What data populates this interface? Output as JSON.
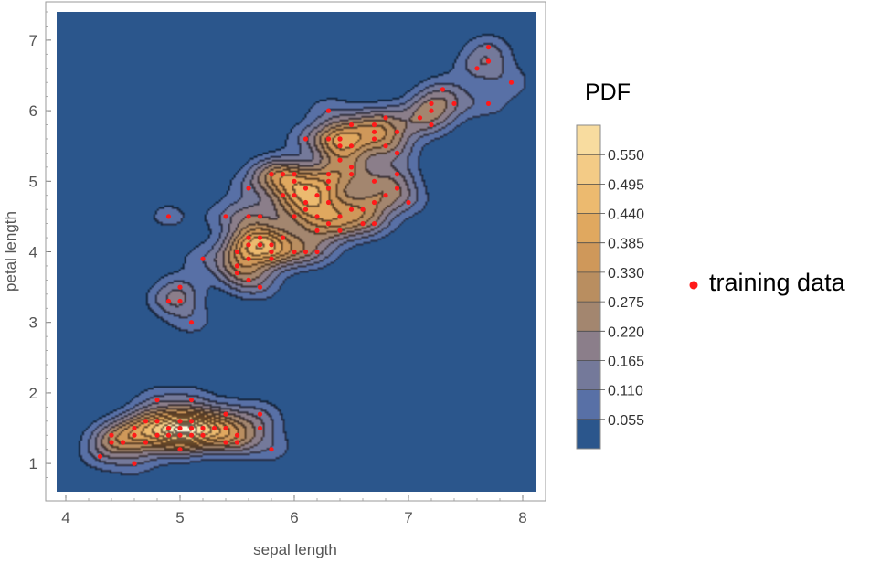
{
  "chart_data": {
    "type": "contour",
    "xlabel": "sepal length",
    "ylabel": "petal length",
    "xlim": [
      3.92,
      8.12
    ],
    "ylim": [
      0.6,
      7.4
    ],
    "x_ticks": [
      4,
      5,
      6,
      7,
      8
    ],
    "y_ticks": [
      1,
      2,
      3,
      4,
      5,
      6,
      7
    ],
    "grid": false,
    "colorbar": {
      "title": "PDF",
      "ticks": [
        "0.055",
        "0.110",
        "0.165",
        "0.220",
        "0.275",
        "0.330",
        "0.385",
        "0.440",
        "0.495",
        "0.550"
      ],
      "colors": [
        "#2b568c",
        "#5870a6",
        "#74799a",
        "#8b7e8a",
        "#a3866f",
        "#b98e60",
        "#cf985a",
        "#e0a85f",
        "#ecba6f",
        "#f3cb86",
        "#f8dc9f",
        "#fcecbe",
        "#fff8dc"
      ]
    },
    "legend": {
      "label": "training data",
      "color": "#ff1a1a",
      "placement": "right"
    },
    "density_levels": [
      0.055,
      0.11,
      0.165,
      0.22,
      0.275,
      0.33,
      0.385,
      0.44,
      0.495,
      0.55
    ],
    "points": [
      [
        4.3,
        1.1
      ],
      [
        4.4,
        1.4
      ],
      [
        4.4,
        1.3
      ],
      [
        4.5,
        1.3
      ],
      [
        4.6,
        1.0
      ],
      [
        4.6,
        1.4
      ],
      [
        4.6,
        1.5
      ],
      [
        4.7,
        1.3
      ],
      [
        4.7,
        1.6
      ],
      [
        4.8,
        1.9
      ],
      [
        4.8,
        1.6
      ],
      [
        4.8,
        1.4
      ],
      [
        4.9,
        1.5
      ],
      [
        4.9,
        1.4
      ],
      [
        5.0,
        1.6
      ],
      [
        5.0,
        1.5
      ],
      [
        5.0,
        1.4
      ],
      [
        5.0,
        1.2
      ],
      [
        5.1,
        1.5
      ],
      [
        5.1,
        1.4
      ],
      [
        5.1,
        1.6
      ],
      [
        5.1,
        1.9
      ],
      [
        5.2,
        1.5
      ],
      [
        5.2,
        1.4
      ],
      [
        5.3,
        1.5
      ],
      [
        5.4,
        1.7
      ],
      [
        5.4,
        1.5
      ],
      [
        5.4,
        1.3
      ],
      [
        5.5,
        1.4
      ],
      [
        5.5,
        1.3
      ],
      [
        5.7,
        1.7
      ],
      [
        5.7,
        1.5
      ],
      [
        5.8,
        1.2
      ],
      [
        4.9,
        3.3
      ],
      [
        5.0,
        3.3
      ],
      [
        5.0,
        3.5
      ],
      [
        5.1,
        3.0
      ],
      [
        4.9,
        4.5
      ],
      [
        5.2,
        3.9
      ],
      [
        5.4,
        4.5
      ],
      [
        5.5,
        4.0
      ],
      [
        5.5,
        3.8
      ],
      [
        5.5,
        3.7
      ],
      [
        5.6,
        4.5
      ],
      [
        5.6,
        4.2
      ],
      [
        5.6,
        4.1
      ],
      [
        5.6,
        3.9
      ],
      [
        5.6,
        3.6
      ],
      [
        5.7,
        4.5
      ],
      [
        5.7,
        4.2
      ],
      [
        5.7,
        4.1
      ],
      [
        5.7,
        3.5
      ],
      [
        5.8,
        4.1
      ],
      [
        5.8,
        4.0
      ],
      [
        5.8,
        5.1
      ],
      [
        5.9,
        4.8
      ],
      [
        5.9,
        4.2
      ],
      [
        6.0,
        5.1
      ],
      [
        6.0,
        4.8
      ],
      [
        6.0,
        4.5
      ],
      [
        6.0,
        4.0
      ],
      [
        6.1,
        5.6
      ],
      [
        6.1,
        4.7
      ],
      [
        6.1,
        4.6
      ],
      [
        6.1,
        4.0
      ],
      [
        6.2,
        4.8
      ],
      [
        6.2,
        4.5
      ],
      [
        6.2,
        4.3
      ],
      [
        6.3,
        6.0
      ],
      [
        6.3,
        5.6
      ],
      [
        6.3,
        5.1
      ],
      [
        6.3,
        5.0
      ],
      [
        6.3,
        4.9
      ],
      [
        6.3,
        4.7
      ],
      [
        6.3,
        4.4
      ],
      [
        6.4,
        5.6
      ],
      [
        6.4,
        5.5
      ],
      [
        6.4,
        5.3
      ],
      [
        6.4,
        4.5
      ],
      [
        6.4,
        4.3
      ],
      [
        6.5,
        5.8
      ],
      [
        6.5,
        5.5
      ],
      [
        6.5,
        5.2
      ],
      [
        6.5,
        4.6
      ],
      [
        6.6,
        4.6
      ],
      [
        6.6,
        4.4
      ],
      [
        6.7,
        5.8
      ],
      [
        6.7,
        5.7
      ],
      [
        6.7,
        5.6
      ],
      [
        6.7,
        5.0
      ],
      [
        6.7,
        4.7
      ],
      [
        6.7,
        4.4
      ],
      [
        6.8,
        5.9
      ],
      [
        6.8,
        5.5
      ],
      [
        6.8,
        4.8
      ],
      [
        6.9,
        5.7
      ],
      [
        6.9,
        5.4
      ],
      [
        6.9,
        5.1
      ],
      [
        6.9,
        4.9
      ],
      [
        7.0,
        4.7
      ],
      [
        7.1,
        5.9
      ],
      [
        7.2,
        6.1
      ],
      [
        7.2,
        6.0
      ],
      [
        7.2,
        5.8
      ],
      [
        7.3,
        6.3
      ],
      [
        7.4,
        6.1
      ],
      [
        7.6,
        6.6
      ],
      [
        7.7,
        6.9
      ],
      [
        7.7,
        6.7
      ],
      [
        7.7,
        6.1
      ],
      [
        7.9,
        6.4
      ],
      [
        5.8,
        5.1
      ],
      [
        6.0,
        5.0
      ],
      [
        6.4,
        5.6
      ],
      [
        6.5,
        5.1
      ],
      [
        5.8,
        3.9
      ],
      [
        5.9,
        5.1
      ],
      [
        6.2,
        4.0
      ],
      [
        6.1,
        4.9
      ],
      [
        5.6,
        4.9
      ]
    ]
  }
}
